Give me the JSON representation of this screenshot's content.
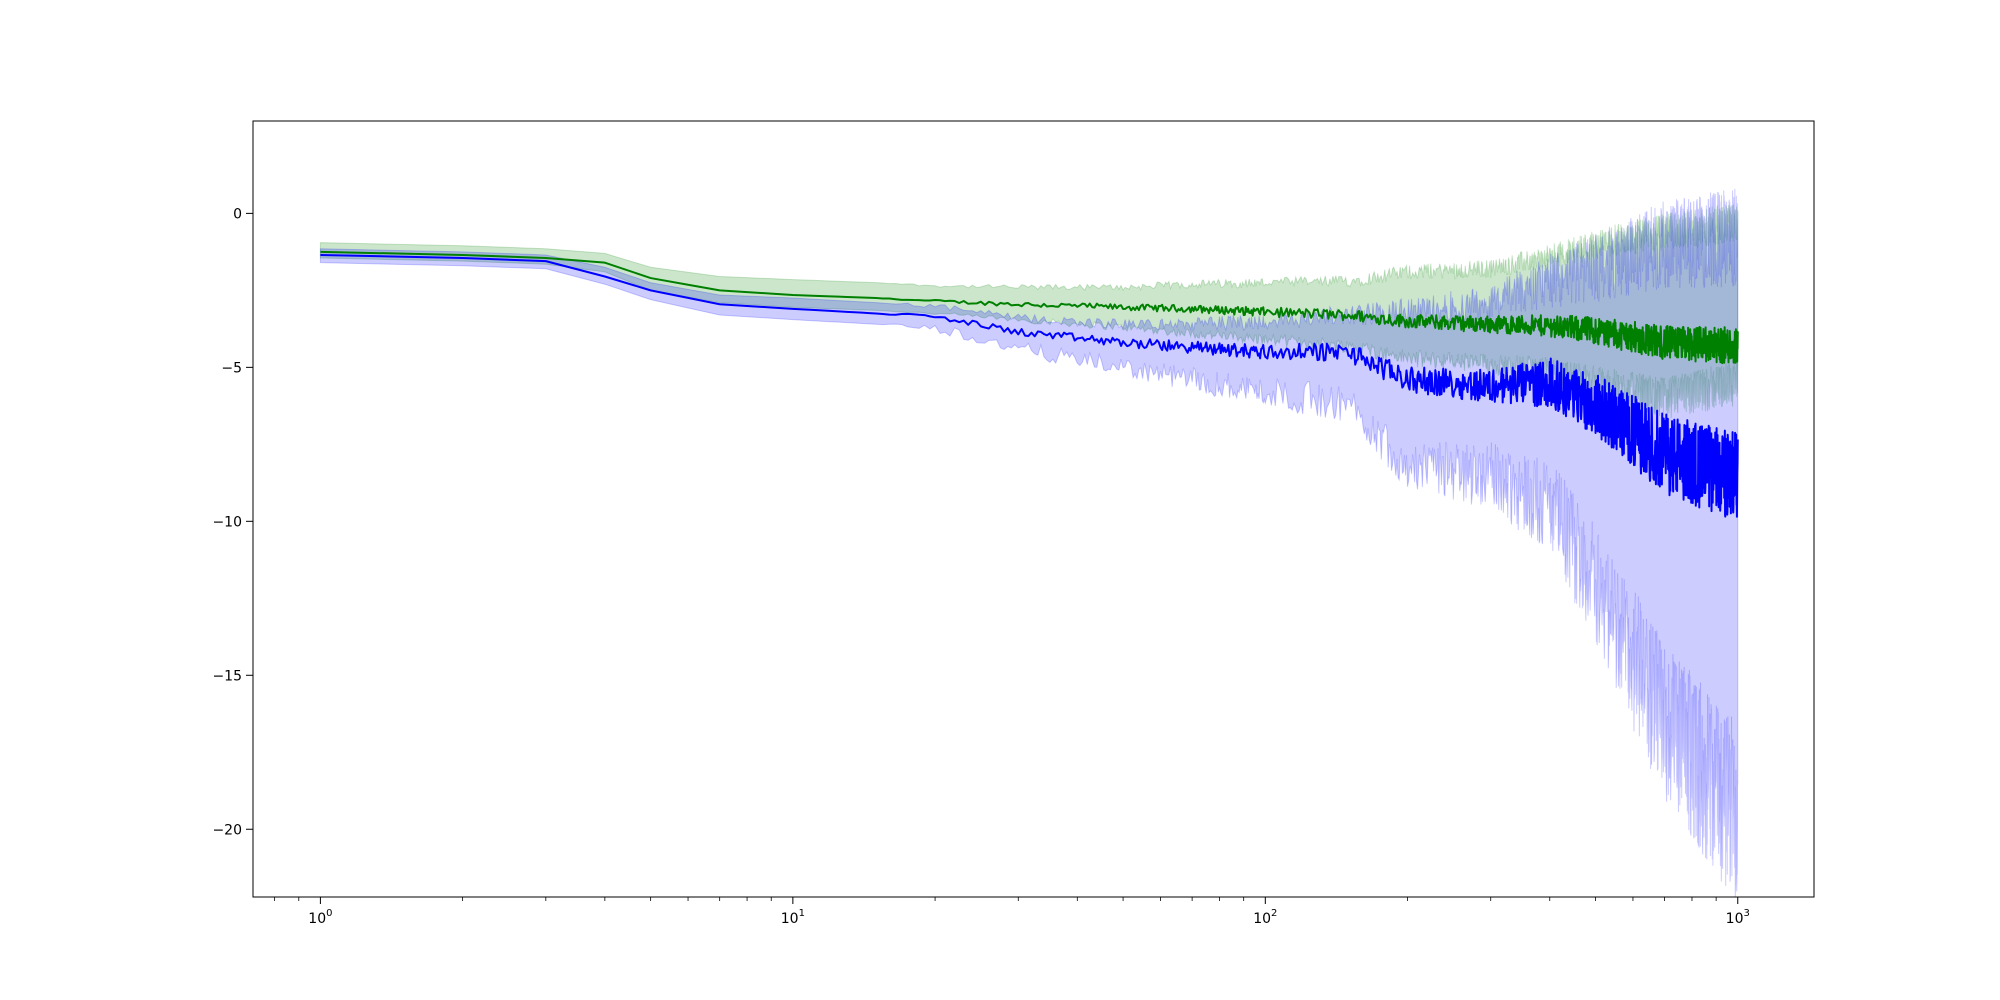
{
  "chart_data": {
    "type": "line",
    "title": "",
    "xlabel": "",
    "ylabel": "",
    "x_scale": "log",
    "xlim": [
      0.72,
      1450
    ],
    "ylim": [
      -22.2,
      3.0
    ],
    "grid": false,
    "legend": "none",
    "x_ticks": [
      {
        "value": 1,
        "base": "10",
        "exp": "0"
      },
      {
        "value": 10,
        "base": "10",
        "exp": "1"
      },
      {
        "value": 100,
        "base": "10",
        "exp": "2"
      },
      {
        "value": 1000,
        "base": "10",
        "exp": "3"
      }
    ],
    "y_ticks": [
      {
        "value": 0,
        "label": "0"
      },
      {
        "value": -5,
        "label": "−5"
      },
      {
        "value": -10,
        "label": "−10"
      },
      {
        "value": -15,
        "label": "−15"
      },
      {
        "value": -20,
        "label": "−20"
      }
    ],
    "series": [
      {
        "color": "#008000",
        "band_color": "#008000",
        "band_opacity": 0.2,
        "x": [
          1,
          2,
          3,
          4,
          5,
          7,
          10,
          15,
          20,
          30,
          50,
          70,
          100,
          150,
          200,
          300,
          400,
          500,
          700,
          1000
        ],
        "y": [
          -1.25,
          -1.35,
          -1.45,
          -1.6,
          -2.1,
          -2.5,
          -2.65,
          -2.75,
          -2.85,
          -2.95,
          -3.05,
          -3.1,
          -3.2,
          -3.3,
          -3.5,
          -3.6,
          -3.65,
          -3.8,
          -4.2,
          -4.3
        ],
        "lower": [
          -1.45,
          -1.55,
          -1.65,
          -1.9,
          -2.5,
          -2.9,
          -3.05,
          -3.15,
          -3.25,
          -3.45,
          -3.7,
          -3.9,
          -4.1,
          -4.3,
          -4.7,
          -4.9,
          -5.1,
          -5.5,
          -6.0,
          -5.5
        ],
        "upper": [
          -0.95,
          -1.05,
          -1.15,
          -1.3,
          -1.75,
          -2.05,
          -2.15,
          -2.25,
          -2.35,
          -2.4,
          -2.4,
          -2.3,
          -2.25,
          -2.2,
          -1.9,
          -1.8,
          -1.4,
          -1.0,
          -0.6,
          -0.3
        ],
        "noise": [
          0,
          0,
          0,
          0,
          0,
          0,
          0,
          0,
          0.04,
          0.08,
          0.1,
          0.12,
          0.15,
          0.18,
          0.22,
          0.28,
          0.35,
          0.45,
          0.55,
          0.6
        ]
      },
      {
        "color": "#0000ff",
        "band_color": "#0000ff",
        "band_opacity": 0.2,
        "x": [
          1,
          2,
          3,
          4,
          5,
          7,
          10,
          15,
          20,
          30,
          50,
          70,
          100,
          150,
          200,
          300,
          400,
          500,
          700,
          1000
        ],
        "y": [
          -1.35,
          -1.45,
          -1.55,
          -2.05,
          -2.5,
          -2.95,
          -3.1,
          -3.25,
          -3.35,
          -3.85,
          -4.2,
          -4.35,
          -4.5,
          -4.5,
          -5.4,
          -5.6,
          -5.5,
          -6.2,
          -7.8,
          -8.6
        ],
        "lower": [
          -1.6,
          -1.7,
          -1.8,
          -2.3,
          -2.8,
          -3.3,
          -3.45,
          -3.6,
          -3.7,
          -4.4,
          -5.0,
          -5.4,
          -5.8,
          -6.2,
          -8.2,
          -8.5,
          -9.5,
          -12.0,
          -16.5,
          -19.5
        ],
        "upper": [
          -1.15,
          -1.25,
          -1.35,
          -1.75,
          -2.25,
          -2.65,
          -2.75,
          -2.9,
          -3.0,
          -3.4,
          -3.6,
          -3.6,
          -3.5,
          -3.3,
          -3.2,
          -2.9,
          -2.2,
          -1.8,
          -1.0,
          -0.8
        ],
        "noise": [
          0,
          0,
          0,
          0,
          0,
          0,
          0,
          0,
          0.08,
          0.12,
          0.15,
          0.2,
          0.25,
          0.3,
          0.4,
          0.55,
          0.8,
          1.0,
          1.3,
          1.5
        ]
      }
    ]
  }
}
